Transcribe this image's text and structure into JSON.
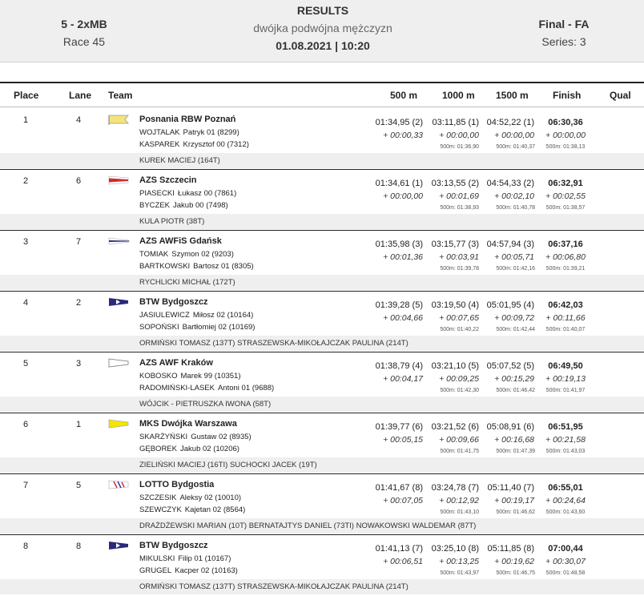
{
  "header": {
    "event_code": "5 - 2xMB",
    "race": "Race 45",
    "title": "RESULTS",
    "subtitle": "dwójka podwójna mężczyzn",
    "datetime": "01.08.2021 | 10:20",
    "phase": "Final - FA",
    "series": "Series: 3"
  },
  "columns": {
    "place": "Place",
    "lane": "Lane",
    "team": "Team",
    "m500": "500 m",
    "m1000": "1000 m",
    "m1500": "1500 m",
    "finish": "Finish",
    "qual": "Qual"
  },
  "rows": [
    {
      "place": "1",
      "lane": "4",
      "team": "Posnania RBW Poznań",
      "flag": "posnania",
      "rowers": [
        {
          "last": "WOJTALAK",
          "first": "Patryk 01 (8299)"
        },
        {
          "last": "KASPAREK",
          "first": "Krzysztof 00 (7312)"
        }
      ],
      "coach": "KUREK MACIEJ (164T)",
      "splits": [
        {
          "time": "01:34,95 (2)",
          "delta": "+ 00:00,33",
          "pace": ""
        },
        {
          "time": "03:11,85 (1)",
          "delta": "+ 00:00,00",
          "pace": "500m: 01:36,90"
        },
        {
          "time": "04:52,22 (1)",
          "delta": "+ 00:00,00",
          "pace": "500m: 01:40,37"
        }
      ],
      "finish": {
        "time": "06:30,36",
        "delta": "+ 00:00,00",
        "pace": "500m: 01:38,13"
      }
    },
    {
      "place": "2",
      "lane": "6",
      "team": "AZS Szczecin",
      "flag": "szczecin",
      "rowers": [
        {
          "last": "PIASECKI",
          "first": "Łukasz 00 (7861)"
        },
        {
          "last": "BYCZEK",
          "first": "Jakub 00 (7498)"
        }
      ],
      "coach": "KULA PIOTR (38T)",
      "splits": [
        {
          "time": "01:34,61 (1)",
          "delta": "+ 00:00,00",
          "pace": ""
        },
        {
          "time": "03:13,55 (2)",
          "delta": "+ 00:01,69",
          "pace": "500m: 01:38,93"
        },
        {
          "time": "04:54,33 (2)",
          "delta": "+ 00:02,10",
          "pace": "500m: 01:40,78"
        }
      ],
      "finish": {
        "time": "06:32,91",
        "delta": "+ 00:02,55",
        "pace": "500m: 01:38,57"
      }
    },
    {
      "place": "3",
      "lane": "7",
      "team": "AZS AWFiS Gdańsk",
      "flag": "gdansk",
      "rowers": [
        {
          "last": "TOMIAK",
          "first": "Szymon 02 (9203)"
        },
        {
          "last": "BARTKOWSKI",
          "first": "Bartosz 01 (8305)"
        }
      ],
      "coach": "RYCHLICKI MICHAŁ (172T)",
      "splits": [
        {
          "time": "01:35,98 (3)",
          "delta": "+ 00:01,36",
          "pace": ""
        },
        {
          "time": "03:15,77 (3)",
          "delta": "+ 00:03,91",
          "pace": "500m: 01:39,78"
        },
        {
          "time": "04:57,94 (3)",
          "delta": "+ 00:05,71",
          "pace": "500m: 01:42,16"
        }
      ],
      "finish": {
        "time": "06:37,16",
        "delta": "+ 00:06,80",
        "pace": "500m: 01:39,21"
      }
    },
    {
      "place": "4",
      "lane": "2",
      "team": "BTW Bydgoszcz",
      "flag": "btw",
      "rowers": [
        {
          "last": "JASIULEWICZ",
          "first": "Miłosz 02 (10164)"
        },
        {
          "last": "SOPOŃSKI",
          "first": "Bartłomiej 02 (10169)"
        }
      ],
      "coach": "ORMIŃSKI TOMASZ (137T) STRASZEWSKA-MIKOŁAJCZAK PAULINA (214T)",
      "splits": [
        {
          "time": "01:39,28 (5)",
          "delta": "+ 00:04,66",
          "pace": ""
        },
        {
          "time": "03:19,50 (4)",
          "delta": "+ 00:07,65",
          "pace": "500m: 01:40,22"
        },
        {
          "time": "05:01,95 (4)",
          "delta": "+ 00:09,72",
          "pace": "500m: 01:42,44"
        }
      ],
      "finish": {
        "time": "06:42,03",
        "delta": "+ 00:11,66",
        "pace": "500m: 01:40,07"
      }
    },
    {
      "place": "5",
      "lane": "3",
      "team": "AZS AWF Kraków",
      "flag": "krakow",
      "rowers": [
        {
          "last": "KOBOSKO",
          "first": "Marek 99 (10351)"
        },
        {
          "last": "RADOMIŃSKI-LASEK",
          "first": "Antoni 01 (9688)"
        }
      ],
      "coach": "WÓJCIK - PIETRUSZKA IWONA (58T)",
      "splits": [
        {
          "time": "01:38,79 (4)",
          "delta": "+ 00:04,17",
          "pace": ""
        },
        {
          "time": "03:21,10 (5)",
          "delta": "+ 00:09,25",
          "pace": "500m: 01:42,30"
        },
        {
          "time": "05:07,52 (5)",
          "delta": "+ 00:15,29",
          "pace": "500m: 01:46,42"
        }
      ],
      "finish": {
        "time": "06:49,50",
        "delta": "+ 00:19,13",
        "pace": "500m: 01:41,97"
      }
    },
    {
      "place": "6",
      "lane": "1",
      "team": "MKS Dwójka Warszawa",
      "flag": "warszawa",
      "rowers": [
        {
          "last": "SKARŻYŃSKI",
          "first": "Gustaw 02 (8935)"
        },
        {
          "last": "GĘBOREK",
          "first": "Jakub 02 (10206)"
        }
      ],
      "coach": "ZIELIŃSKI MACIEJ (16TI) SUCHOCKI JACEK (19T)",
      "splits": [
        {
          "time": "01:39,77 (6)",
          "delta": "+ 00:05,15",
          "pace": ""
        },
        {
          "time": "03:21,52 (6)",
          "delta": "+ 00:09,66",
          "pace": "500m: 01:41,75"
        },
        {
          "time": "05:08,91 (6)",
          "delta": "+ 00:16,68",
          "pace": "500m: 01:47,39"
        }
      ],
      "finish": {
        "time": "06:51,95",
        "delta": "+ 00:21,58",
        "pace": "500m: 01:43,03"
      }
    },
    {
      "place": "7",
      "lane": "5",
      "team": "LOTTO Bydgostia",
      "flag": "lotto",
      "rowers": [
        {
          "last": "SZCZESIK",
          "first": "Aleksy 02 (10010)"
        },
        {
          "last": "SZEWCZYK",
          "first": "Kajetan 02 (8564)"
        }
      ],
      "coach": "DRAŻDŻEWSKI MARIAN (10T) BERNATAJTYS DANIEL (73TI) NOWAKOWSKI WALDEMAR (87T)",
      "splits": [
        {
          "time": "01:41,67 (8)",
          "delta": "+ 00:07,05",
          "pace": ""
        },
        {
          "time": "03:24,78 (7)",
          "delta": "+ 00:12,92",
          "pace": "500m: 01:43,10"
        },
        {
          "time": "05:11,40 (7)",
          "delta": "+ 00:19,17",
          "pace": "500m: 01:46,62"
        }
      ],
      "finish": {
        "time": "06:55,01",
        "delta": "+ 00:24,64",
        "pace": "500m: 01:43,60"
      }
    },
    {
      "place": "8",
      "lane": "8",
      "team": "BTW Bydgoszcz",
      "flag": "btw",
      "rowers": [
        {
          "last": "MIKULSKI",
          "first": "Filip 01 (10167)"
        },
        {
          "last": "GRUGEL",
          "first": "Kacper 02 (10163)"
        }
      ],
      "coach": "ORMIŃSKI TOMASZ (137T) STRASZEWSKA-MIKOŁAJCZAK PAULINA (214T)",
      "splits": [
        {
          "time": "01:41,13 (7)",
          "delta": "+ 00:06,51",
          "pace": ""
        },
        {
          "time": "03:25,10 (8)",
          "delta": "+ 00:13,25",
          "pace": "500m: 01:43,97"
        },
        {
          "time": "05:11,85 (8)",
          "delta": "+ 00:19,62",
          "pace": "500m: 01:46,75"
        }
      ],
      "finish": {
        "time": "07:00,44",
        "delta": "+ 00:30,07",
        "pace": "500m: 01:48,58"
      }
    }
  ]
}
